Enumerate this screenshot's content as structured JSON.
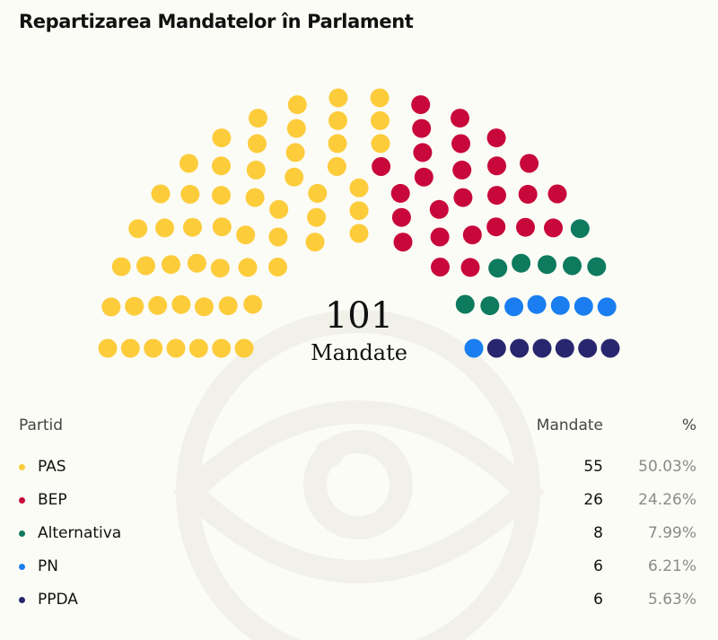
{
  "page": {
    "title": "Repartizarea Mandatelor în Parlament"
  },
  "summary": {
    "total": "101",
    "label": "Mandate"
  },
  "table": {
    "headers": {
      "party": "Partid",
      "seats": "Mandate",
      "pct": "%"
    }
  },
  "chart_data": {
    "type": "parliament",
    "title": "Repartizarea Mandatelor în Parlament",
    "total_seats": 101,
    "series": [
      {
        "name": "PAS",
        "seats": 55,
        "seats_label": "55",
        "pct": "50.03%",
        "color": "#fdcc3b"
      },
      {
        "name": "BEP",
        "seats": 26,
        "seats_label": "26",
        "pct": "24.26%",
        "color": "#c8083a"
      },
      {
        "name": "Alternativa",
        "seats": 8,
        "seats_label": "8",
        "pct": "7.99%",
        "color": "#0e7a5e"
      },
      {
        "name": "PN",
        "seats": 6,
        "seats_label": "6",
        "pct": "6.21%",
        "color": "#1a7ef0"
      },
      {
        "name": "PPDA",
        "seats": 6,
        "seats_label": "6",
        "pct": "5.63%",
        "color": "#28266e"
      }
    ]
  }
}
